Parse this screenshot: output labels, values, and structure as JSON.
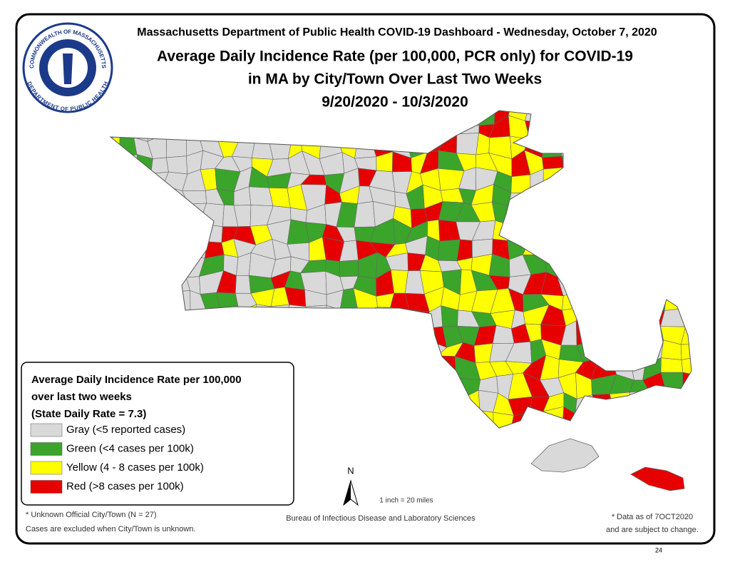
{
  "header": "Massachusetts Department of Public Health COVID-19 Dashboard - Wednesday, October 7, 2020",
  "title": [
    "Average Daily Incidence Rate (per 100,000, PCR only) for COVID-19",
    "in MA by City/Town Over Last Two Weeks",
    "9/20/2020 - 10/3/2020"
  ],
  "seal": {
    "top": "COMMONWEALTH OF MASSACHUSETTS",
    "bottom": "DEPARTMENT OF PUBLIC HEALTH"
  },
  "legend": {
    "title": [
      "Average Daily Incidence Rate per 100,000",
      "over last two weeks",
      "(State Daily Rate = 7.3)"
    ],
    "items": [
      {
        "label": "Gray (<5 reported cases)",
        "color": "#d9d9d9"
      },
      {
        "label": "Green (<4 cases per 100k)",
        "color": "#3aa52a"
      },
      {
        "label": "Yellow (4 - 8 cases per 100k)",
        "color": "#ffff00"
      },
      {
        "label": "Red (>8 cases per 100k)",
        "color": "#e60000"
      }
    ]
  },
  "compass": "N",
  "scale": "1 inch = 20 miles",
  "footnotes": [
    "* Unknown Official City/Town (N = 27)",
    "Cases are excluded when City/Town is unknown."
  ],
  "bureau": "Bureau of Infectious Disease and Laboratory Sciences",
  "note": [
    "* Data as of 7OCT2020",
    "and are subject to change."
  ],
  "page_number": "24"
}
